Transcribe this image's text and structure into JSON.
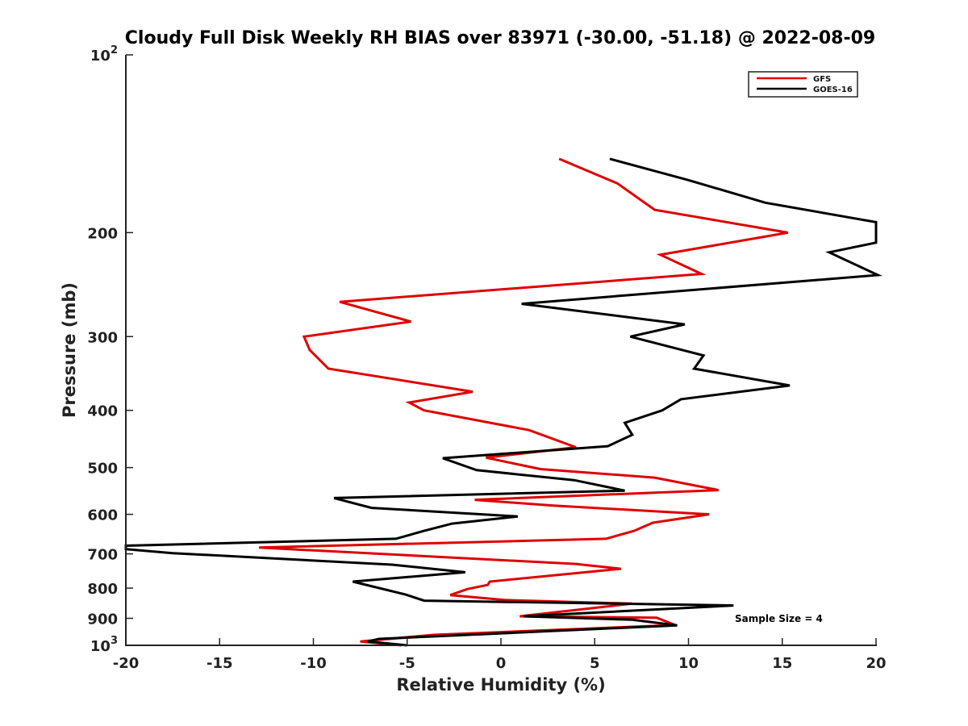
{
  "chart_data": {
    "type": "line",
    "title": "Cloudy Full Disk Weekly RH BIAS over 83971 (-30.00, -51.18) @ 2022-08-09",
    "xlabel": "Relative Humidity (%)",
    "ylabel": "Pressure (mb)",
    "xlim": [
      -20,
      20
    ],
    "ylim": [
      100,
      1000
    ],
    "y_scale": "log",
    "y_reversed": true,
    "grid": false,
    "legend_position": "top-right",
    "x_ticks": [
      -20,
      -15,
      -10,
      -5,
      0,
      5,
      10,
      15,
      20
    ],
    "x_tick_labels": [
      "-20",
      "-15",
      "-10",
      "-5",
      "0",
      "5",
      "10",
      "15",
      "20"
    ],
    "y_ticks": [
      100,
      200,
      300,
      400,
      500,
      600,
      700,
      800,
      900,
      1000
    ],
    "y_tick_labels": [
      {
        "base": "10",
        "sup": "2"
      },
      {
        "base": "200",
        "sup": ""
      },
      {
        "base": "300",
        "sup": ""
      },
      {
        "base": "400",
        "sup": ""
      },
      {
        "base": "500",
        "sup": ""
      },
      {
        "base": "600",
        "sup": ""
      },
      {
        "base": "700",
        "sup": ""
      },
      {
        "base": "800",
        "sup": ""
      },
      {
        "base": "900",
        "sup": ""
      },
      {
        "base": "10",
        "sup": "3"
      }
    ],
    "annotation": "Sample Size = 4",
    "series": [
      {
        "name": "GFS",
        "color": "#e00000",
        "points": [
          {
            "x": 3.1,
            "y": 150
          },
          {
            "x": 6.2,
            "y": 165
          },
          {
            "x": 8.2,
            "y": 183
          },
          {
            "x": 15.3,
            "y": 200
          },
          {
            "x": 8.5,
            "y": 218
          },
          {
            "x": 10.7,
            "y": 235
          },
          {
            "x": -8.6,
            "y": 262
          },
          {
            "x": -4.8,
            "y": 283
          },
          {
            "x": -10.5,
            "y": 300
          },
          {
            "x": -10.2,
            "y": 316
          },
          {
            "x": -9.2,
            "y": 340
          },
          {
            "x": -1.5,
            "y": 372
          },
          {
            "x": -4.9,
            "y": 388
          },
          {
            "x": -4.1,
            "y": 400
          },
          {
            "x": 1.5,
            "y": 432
          },
          {
            "x": 4.0,
            "y": 462
          },
          {
            "x": -0.8,
            "y": 481
          },
          {
            "x": 2.1,
            "y": 503
          },
          {
            "x": 8.2,
            "y": 520
          },
          {
            "x": 11.6,
            "y": 546
          },
          {
            "x": -1.4,
            "y": 567
          },
          {
            "x": 2.8,
            "y": 580
          },
          {
            "x": 11.1,
            "y": 600
          },
          {
            "x": 8.1,
            "y": 620
          },
          {
            "x": 7.1,
            "y": 640
          },
          {
            "x": 5.6,
            "y": 660
          },
          {
            "x": -12.9,
            "y": 683
          },
          {
            "x": 4.0,
            "y": 728
          },
          {
            "x": 6.4,
            "y": 742
          },
          {
            "x": -0.6,
            "y": 780
          },
          {
            "x": -0.7,
            "y": 790
          },
          {
            "x": -1.8,
            "y": 803
          },
          {
            "x": -2.7,
            "y": 822
          },
          {
            "x": 0.2,
            "y": 838
          },
          {
            "x": 7.0,
            "y": 850
          },
          {
            "x": 1.0,
            "y": 893
          },
          {
            "x": 8.3,
            "y": 898
          },
          {
            "x": 9.3,
            "y": 924
          },
          {
            "x": -3.6,
            "y": 960
          },
          {
            "x": -7.5,
            "y": 985
          },
          {
            "x": -5.3,
            "y": 1000
          }
        ]
      },
      {
        "name": "GOES-16",
        "color": "#000000",
        "points": [
          {
            "x": 5.8,
            "y": 150
          },
          {
            "x": 10.0,
            "y": 163
          },
          {
            "x": 14.1,
            "y": 178
          },
          {
            "x": 20.0,
            "y": 192
          },
          {
            "x": 20.0,
            "y": 208
          },
          {
            "x": 17.5,
            "y": 216
          },
          {
            "x": 20.1,
            "y": 236
          },
          {
            "x": 1.1,
            "y": 264
          },
          {
            "x": 9.8,
            "y": 286
          },
          {
            "x": 6.9,
            "y": 300
          },
          {
            "x": 10.8,
            "y": 323
          },
          {
            "x": 10.3,
            "y": 340
          },
          {
            "x": 15.4,
            "y": 363
          },
          {
            "x": 9.6,
            "y": 383
          },
          {
            "x": 8.6,
            "y": 400
          },
          {
            "x": 6.6,
            "y": 420
          },
          {
            "x": 7.0,
            "y": 440
          },
          {
            "x": 5.7,
            "y": 460
          },
          {
            "x": -3.1,
            "y": 482
          },
          {
            "x": -1.3,
            "y": 505
          },
          {
            "x": 3.9,
            "y": 525
          },
          {
            "x": 6.6,
            "y": 547
          },
          {
            "x": -8.9,
            "y": 563
          },
          {
            "x": -6.9,
            "y": 585
          },
          {
            "x": 0.9,
            "y": 605
          },
          {
            "x": -2.6,
            "y": 622
          },
          {
            "x": -4.1,
            "y": 640
          },
          {
            "x": -5.6,
            "y": 660
          },
          {
            "x": -20.0,
            "y": 678
          },
          {
            "x": -20.0,
            "y": 687
          },
          {
            "x": -17.5,
            "y": 698
          },
          {
            "x": -5.8,
            "y": 730
          },
          {
            "x": -1.9,
            "y": 752
          },
          {
            "x": -7.9,
            "y": 780
          },
          {
            "x": -5.1,
            "y": 820
          },
          {
            "x": -4.1,
            "y": 840
          },
          {
            "x": 12.4,
            "y": 856
          },
          {
            "x": 1.2,
            "y": 893
          },
          {
            "x": 7.0,
            "y": 905
          },
          {
            "x": 9.4,
            "y": 925
          },
          {
            "x": -6.5,
            "y": 975
          },
          {
            "x": -7.1,
            "y": 985
          },
          {
            "x": -5.0,
            "y": 1000
          }
        ]
      }
    ]
  }
}
